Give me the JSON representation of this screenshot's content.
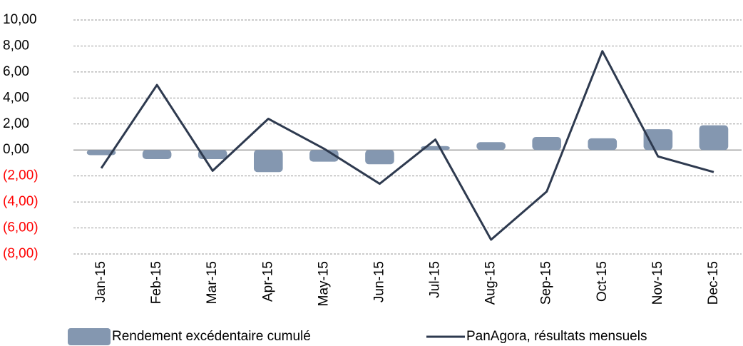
{
  "chart_data": {
    "type": "bar_line",
    "categories": [
      "Jan-15",
      "Feb-15",
      "Mar-15",
      "Apr-15",
      "May-15",
      "Jun-15",
      "Jul-15",
      "Aug-15",
      "Sep-15",
      "Oct-15",
      "Nov-15",
      "Dec-15"
    ],
    "series": [
      {
        "name": "Rendement excédentaire cumulé",
        "type": "bar",
        "color": "#8497b0",
        "values": [
          -0.4,
          -0.7,
          -0.7,
          -1.7,
          -0.9,
          -1.1,
          0.3,
          0.6,
          1.0,
          0.9,
          1.6,
          1.9
        ]
      },
      {
        "name": "PanAgora, résultats mensuels",
        "type": "line",
        "color": "#2e3a4f",
        "values": [
          -1.4,
          5.0,
          -1.6,
          2.4,
          0.1,
          -2.6,
          0.8,
          -6.9,
          -3.2,
          7.6,
          -0.5,
          -1.7
        ]
      }
    ],
    "ylim": [
      -8,
      10
    ],
    "yticks": [
      {
        "value": 10,
        "label": "10,00"
      },
      {
        "value": 8,
        "label": "8,00"
      },
      {
        "value": 6,
        "label": "6,00"
      },
      {
        "value": 4,
        "label": "4,00"
      },
      {
        "value": 2,
        "label": "2,00"
      },
      {
        "value": 0,
        "label": "0,00"
      },
      {
        "value": -2,
        "label": "(2,00)"
      },
      {
        "value": -4,
        "label": "(4,00)"
      },
      {
        "value": -6,
        "label": "(6,00)"
      },
      {
        "value": -8,
        "label": "(8,00)"
      }
    ],
    "negative_tick_color": "#ff0000",
    "grid": true,
    "legend": "bottom"
  }
}
